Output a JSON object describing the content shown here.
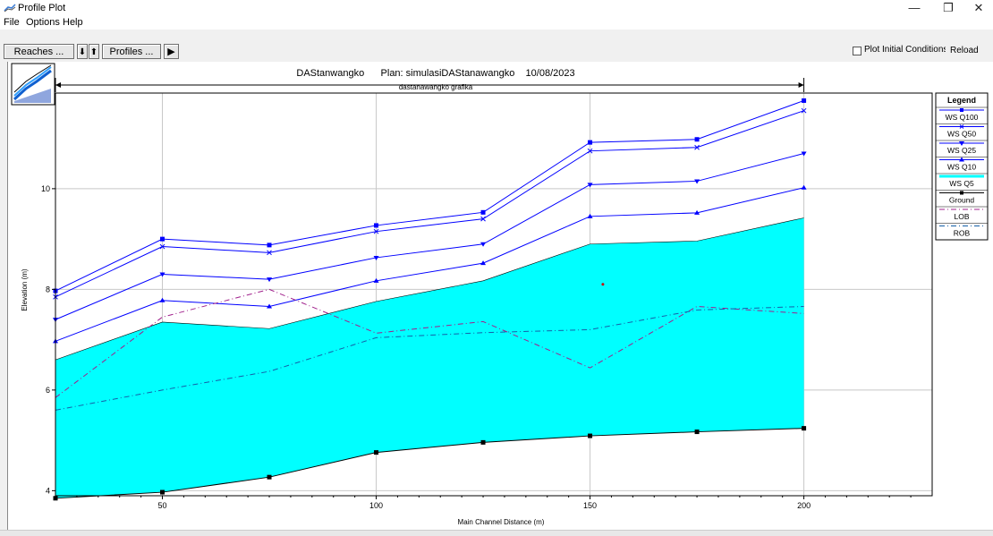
{
  "window": {
    "title": "Profile Plot",
    "minimize": "—",
    "restore": "❐",
    "close": "✕"
  },
  "menu": [
    "File",
    "Options",
    "Help"
  ],
  "toolbar": {
    "reaches_label": "Reaches ...",
    "down_arrow": "⬇",
    "up_arrow": "⬆",
    "profiles_label": "Profiles ...",
    "play_label": "▶",
    "plot_initial_label": "Plot Initial Conditions",
    "plot_initial_checked": false,
    "reload_label": "Reload Data"
  },
  "chart_data": {
    "type": "line",
    "title": "DAStanwangko      Plan: simulasiDAStanawangko    10/08/2023",
    "subtitle": "dastanawangko grafika",
    "xlabel": "Main Channel Distance (m)",
    "ylabel": "Elevation (m)",
    "xlim": [
      25,
      230
    ],
    "ylim": [
      3.9,
      11.9
    ],
    "xticks": [
      50,
      100,
      150,
      200
    ],
    "yticks": [
      4,
      6,
      8,
      10
    ],
    "grid": true,
    "legend_position": "right",
    "legend_title": "Legend",
    "x": [
      25,
      50,
      75,
      100,
      125,
      150,
      175,
      200
    ],
    "series": [
      {
        "name": "WS  Q100",
        "color": "#0000ff",
        "marker": "square",
        "values": [
          7.97,
          9.0,
          8.88,
          9.27,
          9.53,
          10.92,
          10.98,
          11.75
        ]
      },
      {
        "name": "WS  Q50",
        "color": "#0000ff",
        "marker": "x",
        "values": [
          7.85,
          8.85,
          8.73,
          9.15,
          9.4,
          10.75,
          10.82,
          11.55
        ]
      },
      {
        "name": "WS  Q25",
        "color": "#0000ff",
        "marker": "triangle-down",
        "values": [
          7.4,
          8.3,
          8.2,
          8.63,
          8.9,
          10.08,
          10.15,
          10.7
        ]
      },
      {
        "name": "WS  Q10",
        "color": "#0000ff",
        "marker": "triangle",
        "values": [
          6.97,
          7.78,
          7.66,
          8.17,
          8.52,
          9.45,
          9.52,
          10.02
        ]
      },
      {
        "name": "WS  Q5",
        "color": "#00ffff",
        "marker": "none",
        "fill": true,
        "values": [
          6.6,
          7.35,
          7.22,
          7.76,
          8.17,
          8.9,
          8.96,
          9.42
        ]
      },
      {
        "name": "Ground",
        "color": "#000000",
        "marker": "square",
        "values": [
          3.85,
          3.97,
          4.27,
          4.76,
          4.96,
          5.09,
          5.17,
          5.24
        ]
      },
      {
        "name": "LOB",
        "color": "#a0208c",
        "marker": "none",
        "dash": "6,3,1,3",
        "values": [
          5.85,
          7.45,
          8.0,
          7.13,
          7.36,
          6.44,
          7.66,
          7.52
        ]
      },
      {
        "name": "ROB",
        "color": "#1560a8",
        "marker": "none",
        "dash": "6,3,1,3",
        "values": [
          5.6,
          6.0,
          6.37,
          7.04,
          7.14,
          7.2,
          7.59,
          7.66
        ]
      }
    ],
    "annotation_point": {
      "x": 153,
      "y": 8.1,
      "color": "#d00000"
    }
  }
}
